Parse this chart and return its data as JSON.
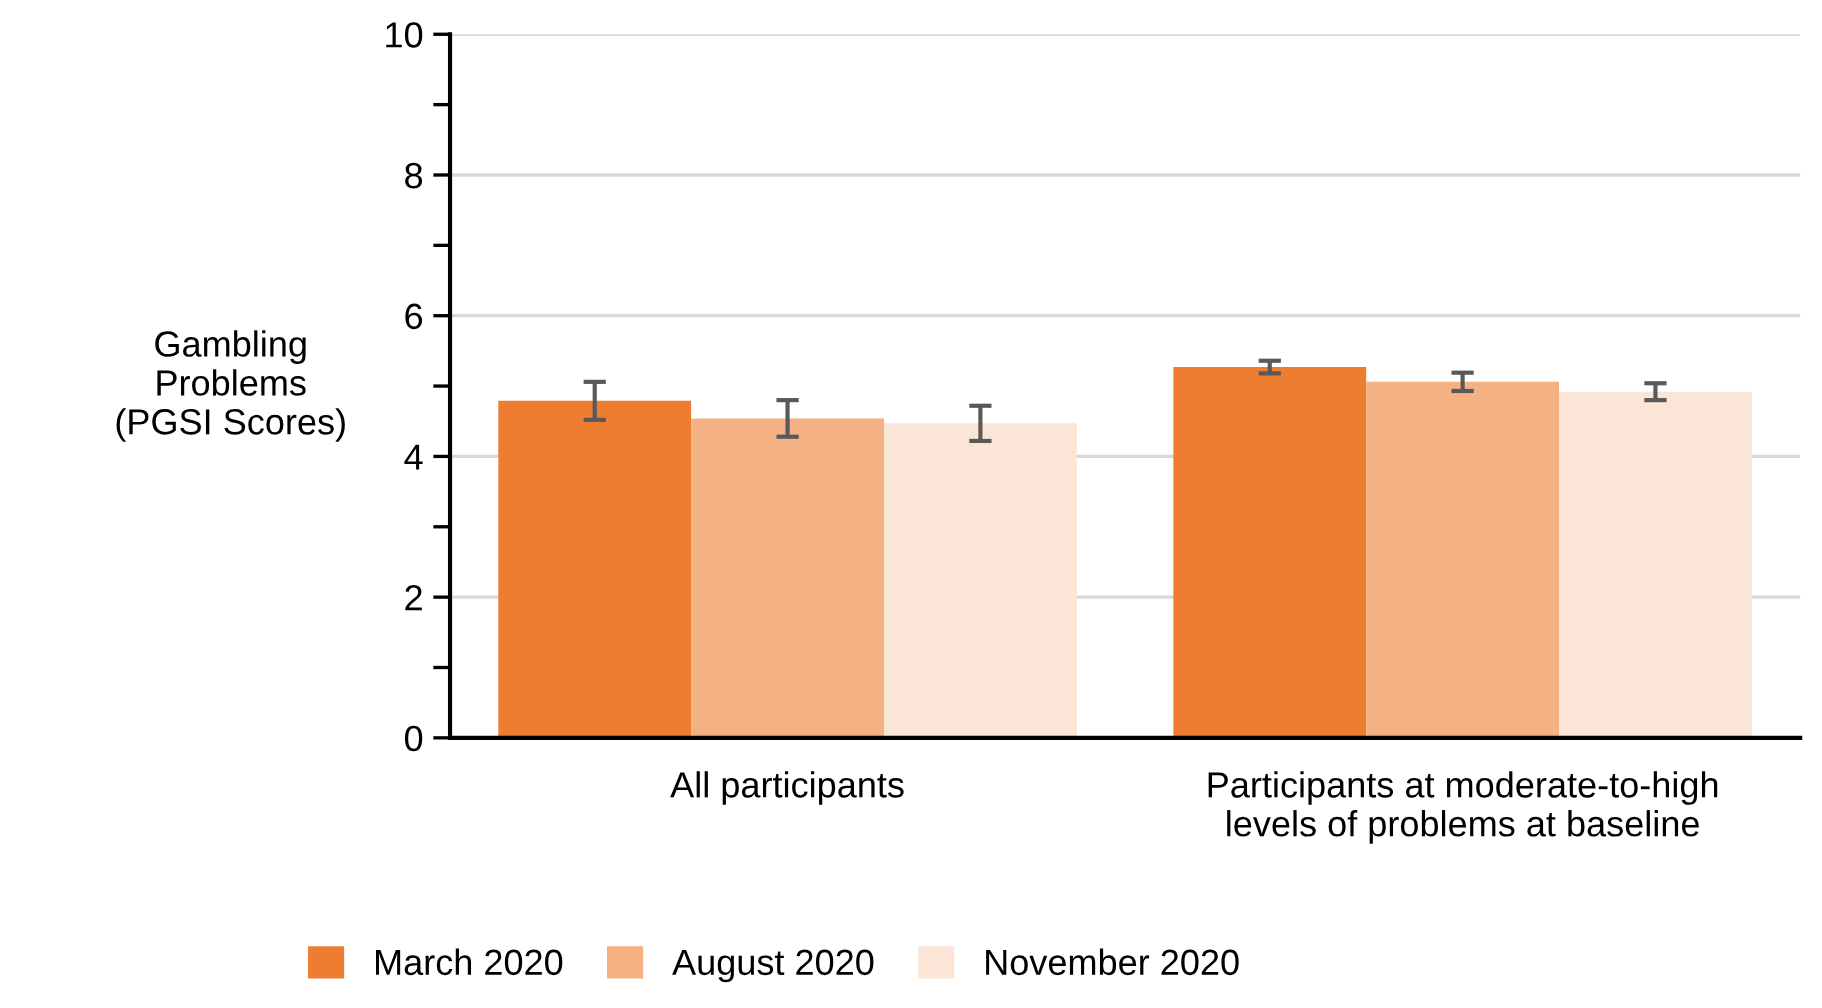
{
  "chart_data": {
    "type": "bar",
    "categories": [
      "All participants",
      "Participants at moderate-to-high\nlevels of problems at baseline"
    ],
    "ylabel": "Gambling\nProblems\n(PGSI Scores)",
    "series": [
      {
        "name": "March 2020",
        "color": "#ed7d31",
        "values": [
          4.79,
          5.27
        ],
        "errors": [
          0.27,
          0.09
        ]
      },
      {
        "name": "August 2020",
        "color": "#f4b183",
        "values": [
          4.54,
          5.06
        ],
        "errors": [
          0.26,
          0.13
        ]
      },
      {
        "name": "November 2020",
        "color": "#fbe5d6",
        "values": [
          4.47,
          4.92
        ],
        "errors": [
          0.25,
          0.12
        ]
      }
    ],
    "ylim": [
      0,
      10
    ],
    "yticks": [
      0,
      {
        "value": 1,
        "label": null
      },
      2,
      {
        "value": 3,
        "label": null
      },
      4,
      {
        "value": 5,
        "label": null
      },
      6,
      {
        "value": 7,
        "label": null
      },
      8,
      {
        "value": 9,
        "label": null
      },
      10
    ],
    "grid": "y",
    "legend": "bottom"
  }
}
